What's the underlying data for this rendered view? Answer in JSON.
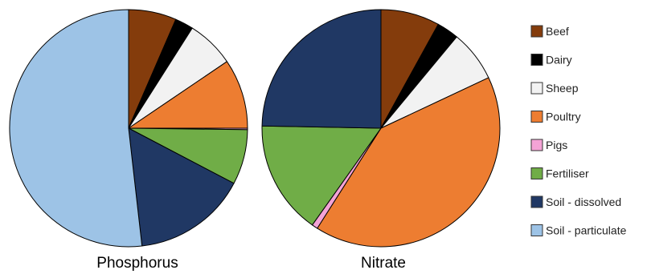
{
  "chart_data": {
    "type": "pie",
    "legend": {
      "placement": "right",
      "entries": [
        {
          "name": "Beef",
          "color": "#843C0C"
        },
        {
          "name": "Dairy",
          "color": "#000000"
        },
        {
          "name": "Sheep",
          "color": "#F2F2F2"
        },
        {
          "name": "Poultry",
          "color": "#ED7D31"
        },
        {
          "name": "Pigs",
          "color": "#F4A3D6"
        },
        {
          "name": "Fertiliser",
          "color": "#70AD47"
        },
        {
          "name": "Soil - dissolved",
          "color": "#203864"
        },
        {
          "name": "Soil - particulate",
          "color": "#9DC3E6"
        }
      ]
    },
    "pies": [
      {
        "title": "Phosphorus",
        "categories": [
          "Beef",
          "Dairy",
          "Sheep",
          "Poultry",
          "Pigs",
          "Fertiliser",
          "Soil - dissolved",
          "Soil - particulate"
        ],
        "values": [
          6.5,
          2.5,
          6.5,
          9.5,
          0.2,
          7.5,
          15.5,
          51.8
        ]
      },
      {
        "title": "Nitrate",
        "categories": [
          "Beef",
          "Dairy",
          "Sheep",
          "Poultry",
          "Pigs",
          "Fertiliser",
          "Soil - dissolved",
          "Soil - particulate"
        ],
        "values": [
          8,
          3,
          7,
          41,
          0.8,
          15.5,
          24.7,
          0
        ]
      }
    ]
  }
}
